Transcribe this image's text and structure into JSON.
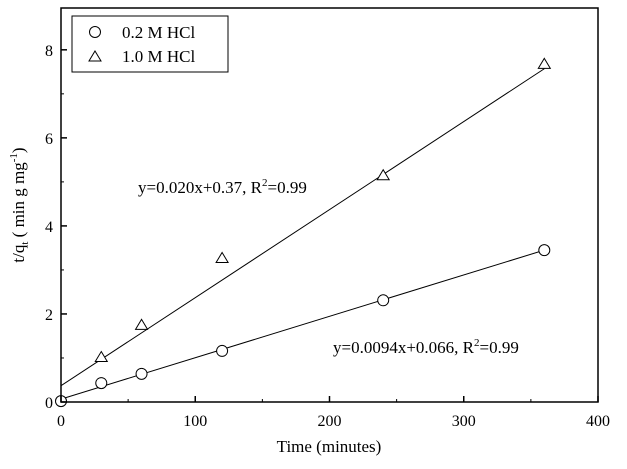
{
  "chart_data": {
    "type": "scatter",
    "title": "",
    "xlabel": "Time (minutes)",
    "ylabel_main": "t/q",
    "ylabel_sub": "t",
    "ylabel_units": " ( min g mg",
    "ylabel_units_sup": "-1",
    "ylabel_units_end": ")",
    "xlim": [
      0,
      400
    ],
    "ylim": [
      0,
      8.95
    ],
    "xticks": [
      0,
      100,
      200,
      300,
      400
    ],
    "yticks": [
      0,
      2,
      4,
      6,
      8
    ],
    "grid": false,
    "legend_position": "top-left",
    "series": [
      {
        "name": "0.2 M HCl",
        "marker": "circle",
        "x": [
          0,
          30,
          60,
          120,
          240,
          360
        ],
        "y": [
          0.02,
          0.43,
          0.64,
          1.16,
          2.31,
          3.45
        ],
        "fit": {
          "slope": 0.0094,
          "intercept": 0.066,
          "label": "y=0.0094x+0.066, R",
          "label_sup": "2",
          "label_end": "=0.99"
        }
      },
      {
        "name": "1.0 M HCl",
        "marker": "triangle",
        "x": [
          30,
          60,
          120,
          240,
          360
        ],
        "y": [
          1.01,
          1.74,
          3.26,
          5.14,
          7.67
        ],
        "fit": {
          "slope": 0.02,
          "intercept": 0.37,
          "label": "y=0.020x+0.37, R",
          "label_sup": "2",
          "label_end": "=0.99"
        }
      }
    ]
  }
}
